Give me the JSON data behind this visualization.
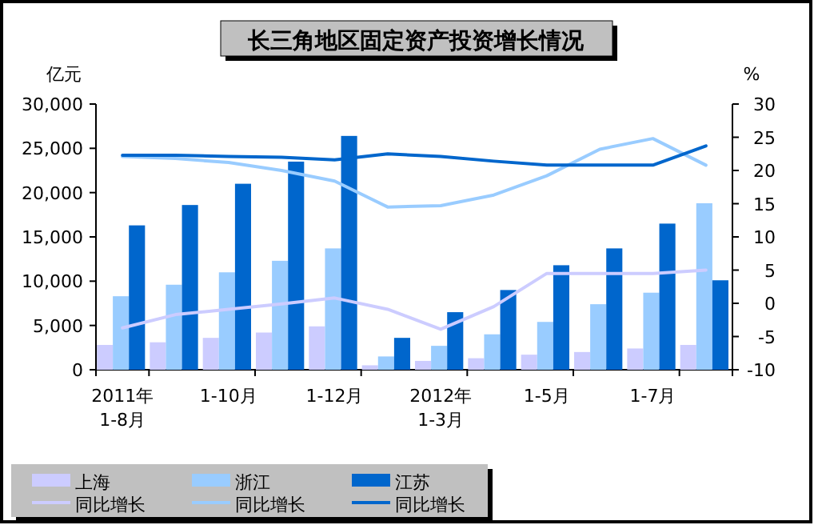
{
  "chart_data": {
    "type": "bar",
    "title": "长三角地区固定资产投资增长情况",
    "ylabel": "亿元",
    "y2label": "%",
    "categories": [
      "2011年\n1-8月",
      null,
      "1-10月",
      null,
      "1-12月",
      null,
      "2012年\n1-3月",
      null,
      "1-5月",
      null,
      "1-7月",
      null
    ],
    "ylim": [
      0,
      30000
    ],
    "yticks": [
      0,
      {
        "value": 5000,
        "label": "5,000"
      },
      {
        "value": 10000,
        "label": "10,000"
      },
      {
        "value": 15000,
        "label": "15,000"
      },
      {
        "value": 20000,
        "label": "20,000"
      },
      {
        "value": 25000,
        "label": "25,000"
      },
      {
        "value": 30000,
        "label": "30,000"
      }
    ],
    "y2lim": [
      -10,
      30
    ],
    "y2ticks": [
      -10,
      -5,
      0,
      5,
      10,
      15,
      20,
      25,
      30
    ],
    "legend": "bottom left",
    "series": [
      {
        "name": "上海",
        "color": "#ccccff",
        "values": [
          2800,
          3100,
          3600,
          4200,
          4900,
          500,
          1000,
          1300,
          1700,
          2000,
          2400,
          2800
        ]
      },
      {
        "name": "浙江",
        "color": "#99ccff",
        "values": [
          8300,
          9600,
          11000,
          12300,
          13700,
          1500,
          2700,
          4000,
          5400,
          7400,
          8700,
          18800
        ]
      },
      {
        "name": "江苏",
        "color": "#0066cc",
        "values": [
          16300,
          18600,
          21000,
          23500,
          26400,
          3600,
          6500,
          9000,
          11800,
          13700,
          16500,
          10100
        ]
      },
      {
        "name": "同比增长",
        "type": "line",
        "axis": "y2",
        "color": "#ccccff",
        "values": [
          -3.7,
          -1.7,
          -0.9,
          -0.1,
          0.8,
          -0.9,
          -3.9,
          -0.5,
          4.5,
          4.5,
          4.5,
          5.0
        ]
      },
      {
        "name": "同比增长",
        "type": "line",
        "axis": "y2",
        "color": "#99ccff",
        "values": [
          22.1,
          21.8,
          21.2,
          20.0,
          18.4,
          14.5,
          14.7,
          16.3,
          19.2,
          23.2,
          24.8,
          20.8
        ]
      },
      {
        "name": "同比增长",
        "type": "line",
        "axis": "y2",
        "color": "#0066cc",
        "values": [
          22.3,
          22.3,
          22.1,
          22.0,
          21.6,
          22.5,
          22.1,
          21.4,
          20.8,
          20.8,
          20.8,
          23.7
        ]
      }
    ]
  }
}
